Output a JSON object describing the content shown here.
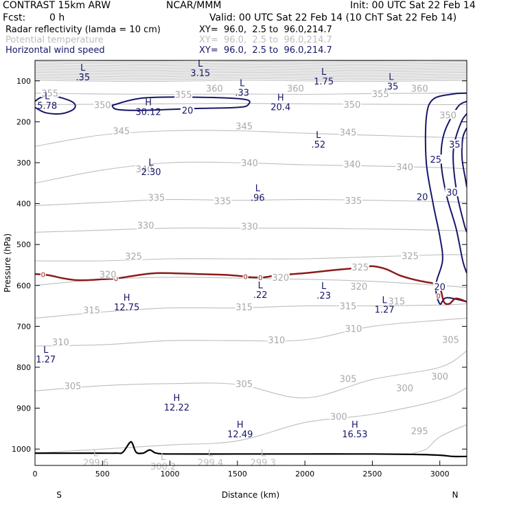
{
  "header": {
    "model": "CONTRAST 15km ARW",
    "center": "NCAR/MMM",
    "init": "Init: 00 UTC Sat 22 Feb 14",
    "fcst_label": "Fcst:",
    "fcst_value": "0 h",
    "valid": "Valid: 00 UTC Sat 22 Feb 14 (10 ChT Sat 22 Feb 14)",
    "fields": [
      {
        "name": "Radar reflectivity (lamda = 10 cm)",
        "xy": "XY=  96.0,  2.5 to  96.0,214.7",
        "color": "#000000"
      },
      {
        "name": "Potential temperature",
        "xy": "XY=  96.0,  2.5 to  96.0,214.7",
        "color": "#bdbdbd"
      },
      {
        "name": "Horizontal wind speed",
        "xy": "XY=  96.0,  2.5 to  96.0,214.7",
        "color": "#151569"
      }
    ]
  },
  "chart_data": {
    "type": "cross-section contour",
    "xlabel": "Distance (km)",
    "ylabel": "Pressure (hPa)",
    "xlim": [
      0,
      3200
    ],
    "ylim": [
      1040,
      50
    ],
    "x_ticks": [
      0,
      500,
      1000,
      1500,
      2000,
      2500,
      3000
    ],
    "y_ticks": [
      100,
      200,
      300,
      400,
      500,
      600,
      700,
      800,
      900,
      1000
    ],
    "x_end_labels": {
      "left": "S",
      "right": "N"
    },
    "colors": {
      "theta": "#bdbdbd",
      "wind": "#151569",
      "freezing": "#8b1a1a",
      "surface": "#000000",
      "labels": "#151569"
    },
    "theta_contours": [
      {
        "value": 355,
        "x": [
          0,
          500,
          1000,
          1500,
          2000,
          2500,
          3000,
          3200
        ],
        "y": [
          130,
          132,
          133,
          132,
          133,
          131,
          130,
          129
        ]
      },
      {
        "value": 350,
        "x": [
          0,
          500,
          1000,
          1500,
          2000,
          2500,
          3000,
          3200
        ],
        "y": [
          158,
          157,
          156,
          155,
          156,
          157,
          158,
          158
        ]
      },
      {
        "value": 345,
        "x": [
          0,
          500,
          1000,
          1500,
          2000,
          2500,
          3000,
          3200
        ],
        "y": [
          260,
          232,
          222,
          222,
          228,
          233,
          238,
          240
        ]
      },
      {
        "value": 340,
        "x": [
          0,
          500,
          1000,
          1500,
          2000,
          2500,
          3000,
          3200
        ],
        "y": [
          350,
          318,
          300,
          300,
          305,
          308,
          312,
          315
        ]
      },
      {
        "value": 335,
        "x": [
          0,
          500,
          1000,
          1500,
          2000,
          2500,
          3000,
          3200
        ],
        "y": [
          405,
          397,
          390,
          392,
          390,
          392,
          395,
          397
        ]
      },
      {
        "value": 330,
        "x": [
          0,
          500,
          1000,
          1500,
          2000,
          2500,
          3000,
          3200
        ],
        "y": [
          470,
          465,
          460,
          460,
          460,
          462,
          465,
          467
        ]
      },
      {
        "value": 325,
        "x": [
          0,
          500,
          1000,
          1500,
          2000,
          2500,
          3000,
          3200
        ],
        "y": [
          540,
          540,
          535,
          535,
          535,
          530,
          525,
          525
        ]
      },
      {
        "value": 320,
        "x": [
          0,
          500,
          1000,
          1500,
          2000,
          2500,
          3000,
          3200
        ],
        "y": [
          600,
          585,
          580,
          582,
          585,
          590,
          600,
          605
        ]
      },
      {
        "value": 315,
        "x": [
          0,
          500,
          1000,
          1500,
          2000,
          2500,
          3000,
          3200
        ],
        "y": [
          680,
          665,
          655,
          655,
          650,
          650,
          648,
          645
        ]
      },
      {
        "value": 310,
        "x": [
          0,
          500,
          1000,
          1500,
          2000,
          2500,
          3000,
          3200
        ],
        "y": [
          748,
          745,
          735,
          735,
          733,
          700,
          685,
          680
        ]
      },
      {
        "value": 305,
        "x": [
          0,
          500,
          1000,
          1500,
          2000,
          2500,
          3000,
          3200
        ],
        "y": [
          858,
          845,
          840,
          842,
          875,
          830,
          800,
          760
        ]
      },
      {
        "value": 300,
        "x": [
          0,
          500,
          1000,
          1500,
          2000,
          2500,
          3000,
          3200
        ],
        "y": [
          1010,
          1000,
          990,
          980,
          935,
          915,
          880,
          850
        ]
      },
      {
        "value": 295,
        "x": [
          2800,
          2900,
          3000,
          3200
        ],
        "y": [
          1010,
          1000,
          970,
          940
        ]
      }
    ],
    "theta_labels": [
      {
        "text": "355",
        "x": 110,
        "y": 130
      },
      {
        "text": "350",
        "x": 500,
        "y": 158
      },
      {
        "text": "355",
        "x": 1100,
        "y": 133
      },
      {
        "text": "360",
        "x": 1330,
        "y": 118
      },
      {
        "text": "360",
        "x": 1930,
        "y": 118
      },
      {
        "text": "355",
        "x": 2560,
        "y": 131
      },
      {
        "text": "360",
        "x": 2850,
        "y": 118
      },
      {
        "text": "350",
        "x": 2350,
        "y": 157
      },
      {
        "text": "350",
        "x": 3060,
        "y": 183
      },
      {
        "text": "345",
        "x": 640,
        "y": 222
      },
      {
        "text": "345",
        "x": 1550,
        "y": 210
      },
      {
        "text": "345",
        "x": 2320,
        "y": 225
      },
      {
        "text": "340",
        "x": 810,
        "y": 315
      },
      {
        "text": "340",
        "x": 1590,
        "y": 300
      },
      {
        "text": "340",
        "x": 2350,
        "y": 303
      },
      {
        "text": "340",
        "x": 2740,
        "y": 310
      },
      {
        "text": "335",
        "x": 900,
        "y": 385
      },
      {
        "text": "335",
        "x": 1390,
        "y": 393
      },
      {
        "text": "335",
        "x": 2360,
        "y": 392
      },
      {
        "text": "330",
        "x": 820,
        "y": 453
      },
      {
        "text": "330",
        "x": 1590,
        "y": 455
      },
      {
        "text": "325",
        "x": 730,
        "y": 528
      },
      {
        "text": "325",
        "x": 2410,
        "y": 555
      },
      {
        "text": "325",
        "x": 2780,
        "y": 527
      },
      {
        "text": "320",
        "x": 540,
        "y": 573
      },
      {
        "text": "320",
        "x": 1820,
        "y": 580
      },
      {
        "text": "320",
        "x": 2400,
        "y": 602
      },
      {
        "text": "315",
        "x": 420,
        "y": 660
      },
      {
        "text": "315",
        "x": 1550,
        "y": 652
      },
      {
        "text": "315",
        "x": 2320,
        "y": 650
      },
      {
        "text": "315",
        "x": 2680,
        "y": 638
      },
      {
        "text": "310",
        "x": 190,
        "y": 738
      },
      {
        "text": "310",
        "x": 1790,
        "y": 733
      },
      {
        "text": "310",
        "x": 2360,
        "y": 705
      },
      {
        "text": "305",
        "x": 3080,
        "y": 732
      },
      {
        "text": "305",
        "x": 280,
        "y": 845
      },
      {
        "text": "305",
        "x": 1550,
        "y": 840
      },
      {
        "text": "305",
        "x": 2320,
        "y": 828
      },
      {
        "text": "300",
        "x": 2740,
        "y": 850
      },
      {
        "text": "300",
        "x": 3000,
        "y": 822
      },
      {
        "text": "300",
        "x": 2250,
        "y": 920
      },
      {
        "text": "295",
        "x": 2850,
        "y": 955
      }
    ],
    "wind_contours": [
      {
        "value": 20,
        "x": [
          0,
          50,
          150,
          280,
          290,
          200,
          80,
          0
        ],
        "y": [
          150,
          140,
          138,
          152,
          168,
          180,
          178,
          165
        ]
      },
      {
        "value": 20,
        "x": [
          570,
          800,
          1200,
          1550,
          1580,
          1500,
          1150,
          800,
          610,
          570
        ],
        "y": [
          160,
          142,
          140,
          145,
          158,
          165,
          168,
          172,
          170,
          160
        ]
      },
      {
        "value": 20,
        "x": [
          3200,
          3100,
          2950,
          2900,
          2900,
          2950,
          3000,
          3020,
          2970,
          3000,
          3050,
          3200
        ],
        "y": [
          130,
          132,
          145,
          190,
          300,
          400,
          480,
          540,
          600,
          645,
          630,
          640
        ]
      },
      {
        "value": 25,
        "x": [
          3200,
          3130,
          3030,
          3010,
          3050,
          3120,
          3170,
          3200
        ],
        "y": [
          150,
          165,
          230,
          300,
          380,
          460,
          540,
          570
        ]
      },
      {
        "value": 30,
        "x": [
          3200,
          3160,
          3110,
          3100,
          3130,
          3180,
          3200
        ],
        "y": [
          180,
          200,
          250,
          300,
          380,
          450,
          470
        ]
      },
      {
        "value": 35,
        "x": [
          3200,
          3170,
          3165,
          3190,
          3200
        ],
        "y": [
          215,
          240,
          290,
          340,
          360
        ]
      }
    ],
    "wind_labels": [
      {
        "text": "20",
        "x": 1130,
        "y": 172
      },
      {
        "text": "20",
        "x": 2870,
        "y": 383
      },
      {
        "text": "25",
        "x": 2970,
        "y": 292
      },
      {
        "text": "30",
        "x": 3090,
        "y": 372
      },
      {
        "text": "35",
        "x": 3110,
        "y": 255
      },
      {
        "text": "20",
        "x": 3000,
        "y": 603
      }
    ],
    "freezing_line": {
      "label": "0",
      "x": [
        0,
        100,
        200,
        300,
        400,
        500,
        600,
        700,
        800,
        900,
        1000,
        1200,
        1400,
        1550,
        1600,
        1700,
        1800,
        2000,
        2200,
        2400,
        2500,
        2600,
        2700,
        2800,
        2900,
        2950,
        3000,
        3030,
        3070,
        3120,
        3200
      ],
      "y": [
        572,
        575,
        582,
        587,
        587,
        585,
        583,
        578,
        573,
        570,
        570,
        572,
        574,
        578,
        580,
        580,
        575,
        570,
        563,
        557,
        553,
        560,
        575,
        585,
        592,
        595,
        605,
        640,
        645,
        632,
        640
      ],
      "label_x": [
        60,
        600,
        1560,
        1670,
        2990
      ],
      "label_y": [
        573,
        583,
        578,
        580,
        625
      ]
    },
    "surface": {
      "x": [
        0,
        200,
        400,
        600,
        650,
        700,
        720,
        750,
        800,
        830,
        850,
        870,
        900,
        1000,
        1500,
        2000,
        2500,
        2800,
        3000,
        3100,
        3200
      ],
      "y": [
        1010,
        1010,
        1010,
        1010,
        1008,
        985,
        985,
        1008,
        1010,
        1005,
        1002,
        1005,
        1010,
        1012,
        1012,
        1012,
        1012,
        1013,
        1015,
        1018,
        1018
      ]
    },
    "extrema": [
      {
        "type": "L",
        "value": ".35",
        "x": 355,
        "y": 80
      },
      {
        "type": "L",
        "value": "3.15",
        "x": 1225,
        "y": 70
      },
      {
        "type": "L",
        "value": ".33",
        "x": 1535,
        "y": 118
      },
      {
        "type": "L",
        "value": "1.75",
        "x": 2140,
        "y": 90
      },
      {
        "type": "L",
        "value": ".35",
        "x": 2640,
        "y": 103
      },
      {
        "type": "H",
        "value": "30.12",
        "x": 840,
        "y": 165
      },
      {
        "type": "H",
        "value": "20.4",
        "x": 1820,
        "y": 153
      },
      {
        "type": "L",
        "value": "5.78",
        "x": 90,
        "y": 150
      },
      {
        "type": "L",
        "value": "2.30",
        "x": 860,
        "y": 312
      },
      {
        "type": "L",
        "value": ".52",
        "x": 2100,
        "y": 245
      },
      {
        "type": "L",
        "value": ".96",
        "x": 1650,
        "y": 375
      },
      {
        "type": "L",
        "value": ".22",
        "x": 1670,
        "y": 612
      },
      {
        "type": "L",
        "value": ".23",
        "x": 2140,
        "y": 614
      },
      {
        "type": "L",
        "value": "1.27",
        "x": 2590,
        "y": 648
      },
      {
        "type": "H",
        "value": "12.75",
        "x": 680,
        "y": 642
      },
      {
        "type": "L",
        "value": "1.27",
        "x": 80,
        "y": 770
      },
      {
        "type": "H",
        "value": "12.22",
        "x": 1050,
        "y": 887
      },
      {
        "type": "H",
        "value": "12.49",
        "x": 1520,
        "y": 953
      },
      {
        "type": "H",
        "value": "16.53",
        "x": 2370,
        "y": 953
      },
      {
        "type": "L",
        "value": "299.6",
        "x": 450,
        "y": 1022
      },
      {
        "type": "L",
        "value": "300.2",
        "x": 950,
        "y": 1032
      },
      {
        "type": "L",
        "value": "299.4",
        "x": 1300,
        "y": 1022
      },
      {
        "type": "L",
        "value": "299.3",
        "x": 1690,
        "y": 1022
      }
    ],
    "extrema_grey": [
      "299.6",
      "300.2",
      "299.4",
      "299.3"
    ],
    "stratosphere_band": {
      "p_top": 50,
      "p_bottom": 100,
      "line_count": 14
    }
  }
}
